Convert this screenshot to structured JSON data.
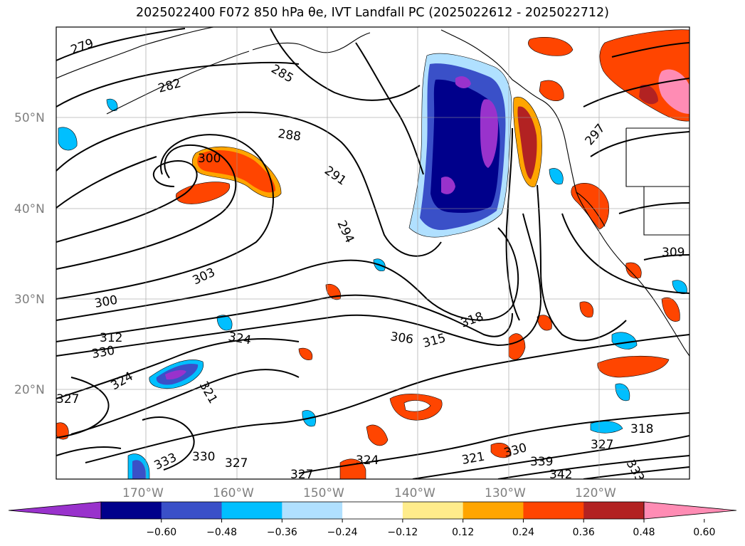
{
  "title": "2025022400 F072 850 hPa θe, IVT Landfall PC (2025022612 - 2025022712)",
  "map": {
    "lat_ticks": [
      "50°N",
      "40°N",
      "30°N",
      "20°N"
    ],
    "lon_ticks": [
      "170°W",
      "160°W",
      "150°W",
      "140°W",
      "130°W",
      "120°W"
    ],
    "contour_labels": [
      "279",
      "282",
      "285",
      "288",
      "291",
      "294",
      "297",
      "300",
      "303",
      "306",
      "309",
      "312",
      "315",
      "318",
      "321",
      "324",
      "327",
      "330",
      "333",
      "339",
      "342"
    ],
    "grid": true
  },
  "colorbar": {
    "ticks": [
      "−0.60",
      "−0.48",
      "−0.36",
      "−0.24",
      "−0.12",
      "0.12",
      "0.24",
      "0.36",
      "0.48",
      "0.60"
    ],
    "colors": [
      "#9932CC",
      "#00008B",
      "#3A50C8",
      "#00BFFF",
      "#B0E0FF",
      "#FFFFFF",
      "#FFEC8B",
      "#FFA500",
      "#FF4500",
      "#B22222",
      "#FF8CB4"
    ],
    "extend": "both"
  }
}
